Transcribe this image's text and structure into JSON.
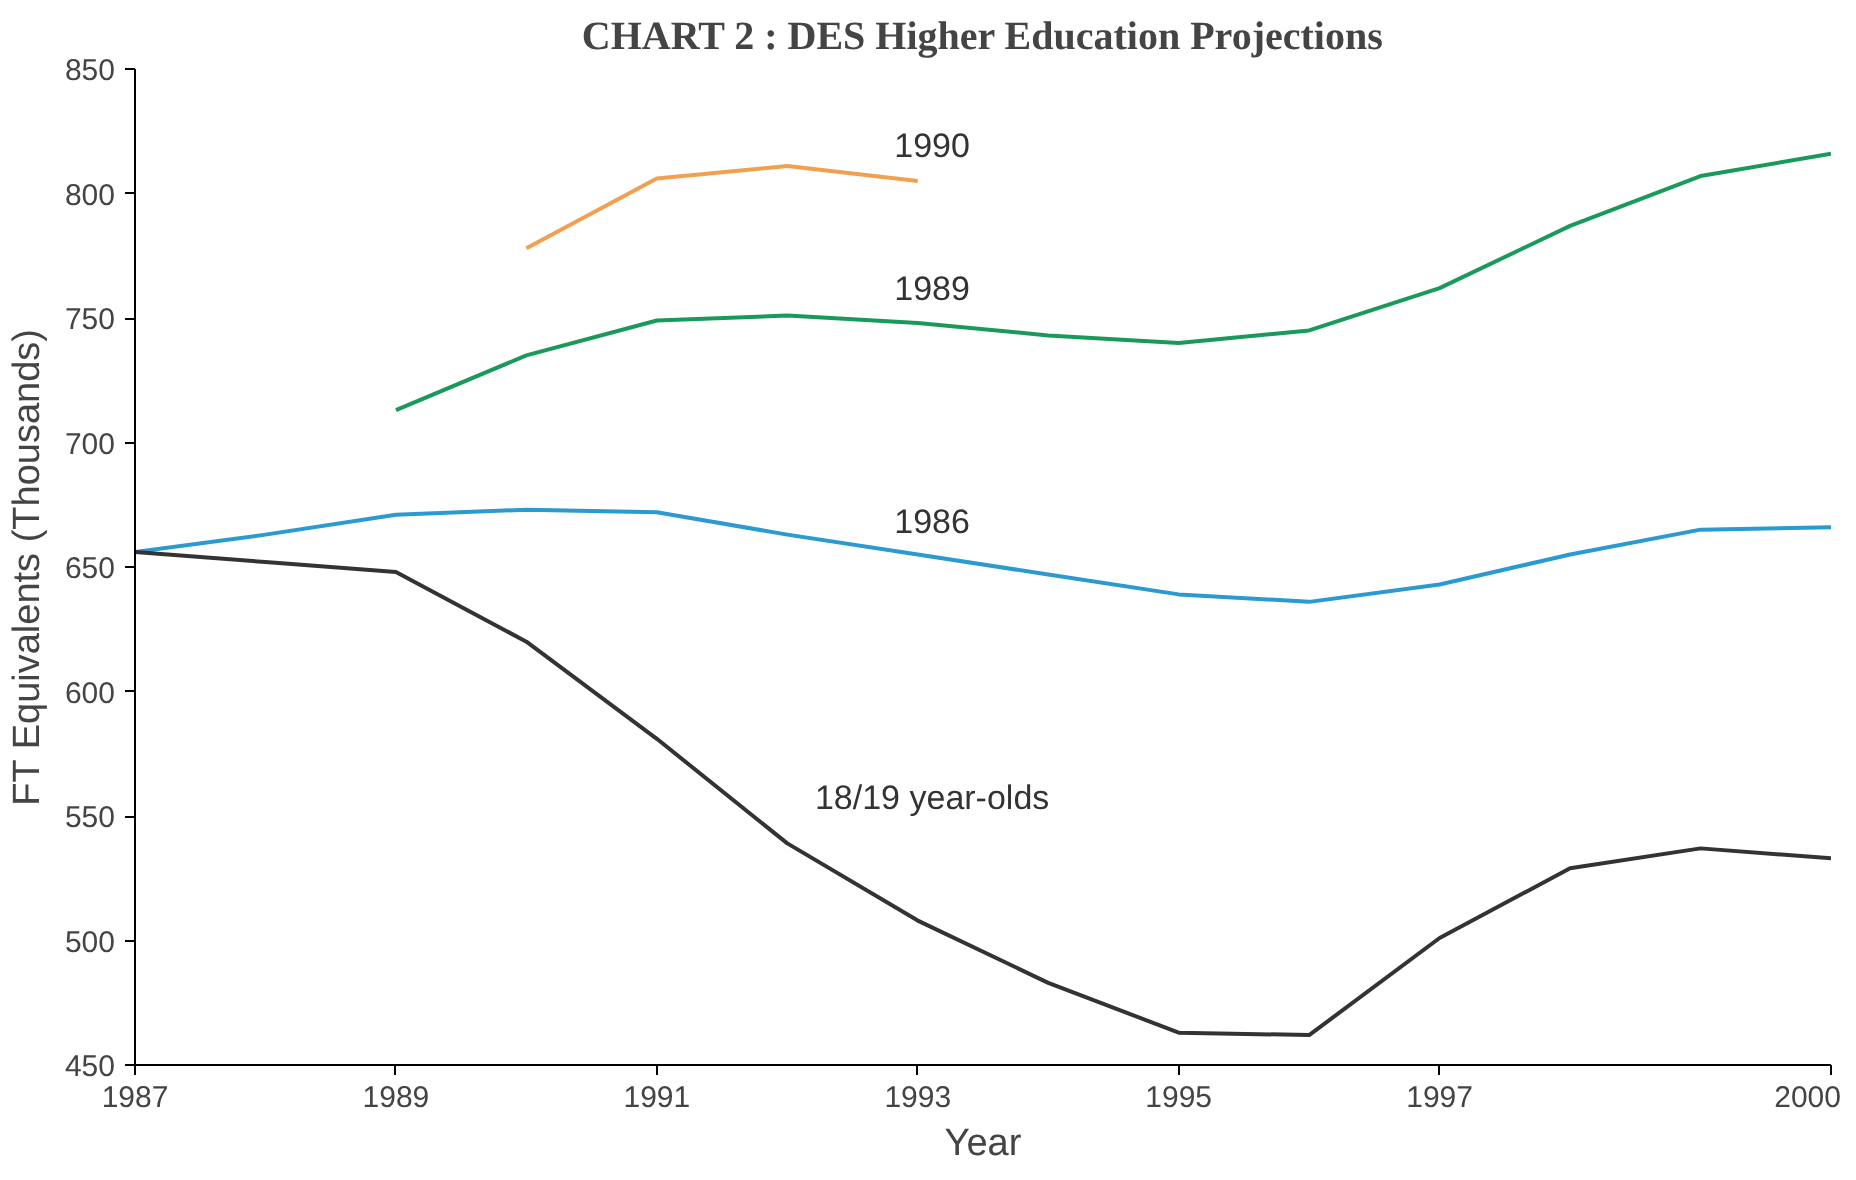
{
  "chart_data": {
    "type": "line",
    "title": "CHART 2 : DES Higher Education Projections",
    "xlabel": "Year",
    "ylabel": "FT Equivalents (Thousands)",
    "xlim": [
      1987,
      2000
    ],
    "xticks": [
      1987,
      1989,
      1991,
      1993,
      1995,
      1997,
      2000
    ],
    "ylim": [
      450,
      850
    ],
    "yticks": [
      450,
      500,
      550,
      600,
      650,
      700,
      750,
      800,
      850
    ],
    "grid": false,
    "series": [
      {
        "name": "1990",
        "color": "#f0a050",
        "x": [
          1990,
          1991,
          1992,
          1993
        ],
        "values": [
          778,
          806,
          811,
          805
        ]
      },
      {
        "name": "1989",
        "color": "#1a9a5a",
        "x": [
          1989,
          1990,
          1991,
          1992,
          1993,
          1994,
          1995,
          1996,
          1997,
          1998,
          1999,
          2000
        ],
        "values": [
          713,
          735,
          749,
          751,
          748,
          743,
          740,
          745,
          762,
          787,
          807,
          816
        ]
      },
      {
        "name": "1986",
        "color": "#2a9ad0",
        "x": [
          1987,
          1988,
          1989,
          1990,
          1991,
          1992,
          1993,
          1994,
          1995,
          1996,
          1997,
          1998,
          1999,
          2000
        ],
        "values": [
          656,
          663,
          671,
          673,
          672,
          663,
          655,
          647,
          639,
          636,
          643,
          655,
          665,
          666
        ]
      },
      {
        "name": "18/19 year-olds",
        "color": "#333333",
        "x": [
          1987,
          1988,
          1989,
          1990,
          1991,
          1992,
          1993,
          1994,
          1995,
          1996,
          1997,
          1998,
          1999,
          2000
        ],
        "values": [
          656,
          652,
          648,
          620,
          581,
          539,
          508,
          483,
          463,
          462,
          501,
          529,
          537,
          533
        ]
      }
    ]
  }
}
